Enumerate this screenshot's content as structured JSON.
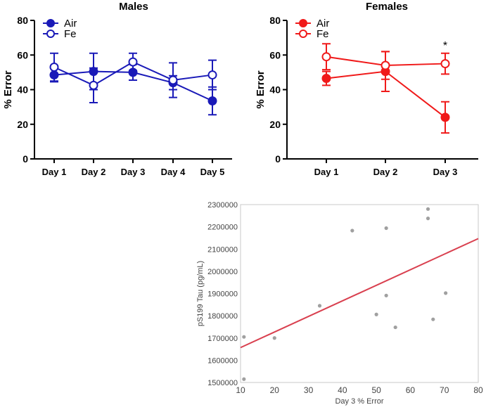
{
  "chart_data": [
    {
      "type": "line",
      "title": "Males",
      "ylabel": "% Error",
      "xlabel": "",
      "ylim": [
        0,
        80
      ],
      "yticks": [
        0,
        20,
        40,
        60,
        80
      ],
      "categories": [
        "Day 1",
        "Day 2",
        "Day 3",
        "Day 4",
        "Day 5"
      ],
      "legend_position": "top-left",
      "color": "#1a1ab8",
      "series": [
        {
          "name": "Air",
          "marker": "filled",
          "values": [
            48.5,
            50.5,
            50,
            44,
            33.5
          ],
          "errors": [
            4,
            10.5,
            4.5,
            4,
            8
          ]
        },
        {
          "name": "Fe",
          "marker": "open",
          "values": [
            53,
            42.5,
            56,
            45.5,
            48.5
          ],
          "errors": [
            8,
            10,
            5,
            10,
            8.5
          ]
        }
      ],
      "annotations": []
    },
    {
      "type": "line",
      "title": "Females",
      "ylabel": "% Error",
      "xlabel": "",
      "ylim": [
        0,
        80
      ],
      "yticks": [
        0,
        20,
        40,
        60,
        80
      ],
      "categories": [
        "Day 1",
        "Day 2",
        "Day 3"
      ],
      "legend_position": "top-left",
      "color": "#f01a1a",
      "series": [
        {
          "name": "Air",
          "marker": "filled",
          "values": [
            46.5,
            50.5,
            24
          ],
          "errors": [
            4,
            11.5,
            9
          ]
        },
        {
          "name": "Fe",
          "marker": "open",
          "values": [
            59,
            54,
            55
          ],
          "errors": [
            7.5,
            8,
            6
          ]
        }
      ],
      "annotations": [
        {
          "category": "Day 3",
          "text": "*"
        }
      ]
    },
    {
      "type": "scatter",
      "title": "",
      "xlabel": "Day 3 % Error",
      "ylabel": "pS199 Tau (pg/mL)",
      "xlim": [
        10,
        80
      ],
      "ylim": [
        1500000,
        2300000
      ],
      "xticks": [
        10,
        20,
        30,
        40,
        50,
        60,
        70,
        80
      ],
      "yticks": [
        1500000,
        1600000,
        1700000,
        1800000,
        1900000,
        2000000,
        2100000,
        2200000,
        2300000
      ],
      "point_color": "#a0a0a0",
      "line_color": "#d9404f",
      "points": [
        [
          11,
          1705000
        ],
        [
          11,
          1515000
        ],
        [
          20,
          1700000
        ],
        [
          33.3,
          1845000
        ],
        [
          42.9,
          2183000
        ],
        [
          50,
          1806000
        ],
        [
          52.9,
          2194000
        ],
        [
          52.9,
          1891000
        ],
        [
          55.6,
          1748000
        ],
        [
          65.2,
          2280000
        ],
        [
          65.2,
          2238000
        ],
        [
          66.7,
          1784000
        ],
        [
          70.4,
          1902000
        ]
      ],
      "fit_line": [
        [
          10,
          1657000
        ],
        [
          80,
          2147000
        ]
      ]
    }
  ]
}
